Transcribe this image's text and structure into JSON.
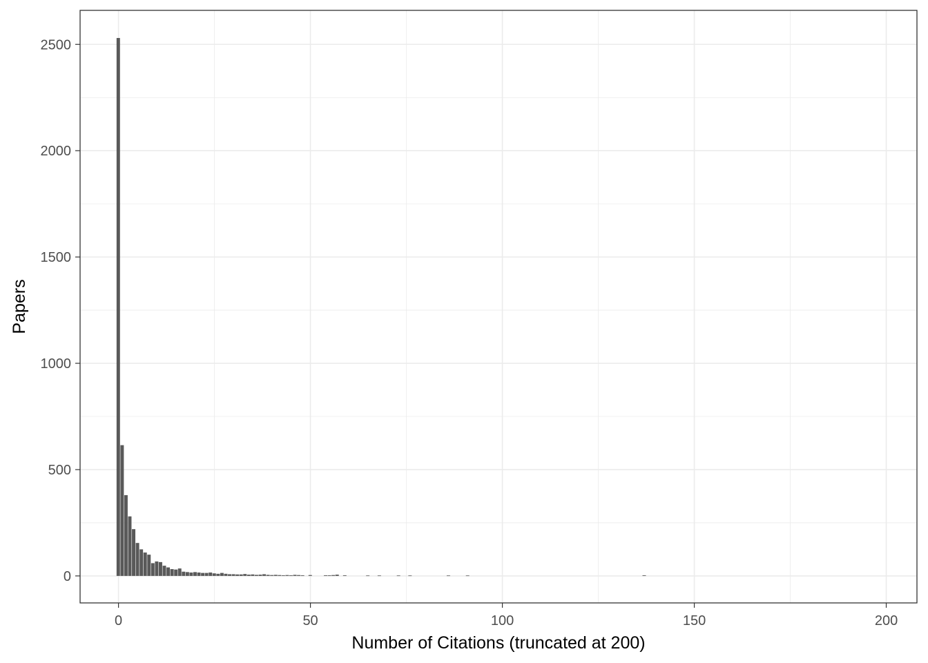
{
  "chart_data": {
    "type": "bar",
    "xlabel": "Number of Citations (truncated at 200)",
    "ylabel": "Papers",
    "xlim": [
      -10,
      208
    ],
    "ylim": [
      -127,
      2660
    ],
    "x_ticks": [
      0,
      50,
      100,
      150,
      200
    ],
    "y_ticks": [
      0,
      500,
      1000,
      1500,
      2000,
      2500
    ],
    "grid": true,
    "colors": {
      "bar": "#595959",
      "grid": "#ebebeb",
      "panel_border": "#333333",
      "tick_label": "#4d4d4d"
    },
    "bins": [
      0,
      1,
      2,
      3,
      4,
      5,
      6,
      7,
      8,
      9,
      10,
      11,
      12,
      13,
      14,
      15,
      16,
      17,
      18,
      19,
      20,
      21,
      22,
      23,
      24,
      25,
      26,
      27,
      28,
      29,
      30,
      31,
      32,
      33,
      34,
      35,
      36,
      37,
      38,
      39,
      40,
      41,
      42,
      43,
      44,
      45,
      46,
      47,
      48,
      50,
      54,
      55,
      56,
      57,
      59,
      65,
      68,
      73,
      76,
      86,
      91,
      137
    ],
    "values": [
      2530,
      615,
      380,
      280,
      220,
      155,
      125,
      110,
      100,
      60,
      68,
      65,
      48,
      40,
      32,
      30,
      35,
      20,
      18,
      16,
      18,
      16,
      14,
      14,
      16,
      12,
      10,
      14,
      10,
      8,
      8,
      7,
      7,
      9,
      6,
      7,
      5,
      6,
      8,
      5,
      4,
      5,
      4,
      3,
      4,
      3,
      5,
      4,
      3,
      4,
      3,
      3,
      4,
      6,
      3,
      2,
      2,
      2,
      2,
      2,
      2,
      3
    ]
  }
}
